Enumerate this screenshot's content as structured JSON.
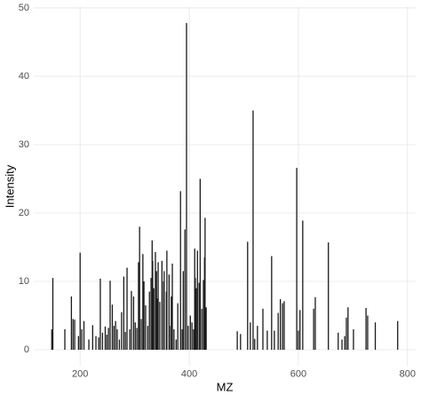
{
  "chart_data": {
    "type": "bar",
    "xlabel": "MZ",
    "ylabel": "Intensity",
    "color": "#1a1a1a",
    "grid": true,
    "xlim": [
      115,
      815
    ],
    "ylim": [
      -2.4,
      50.2
    ],
    "xticks": [
      200,
      400,
      600,
      800
    ],
    "yticks": [
      0,
      10,
      20,
      30,
      40,
      50
    ],
    "x": [
      148,
      150,
      172,
      184,
      187,
      190,
      197,
      200,
      203,
      207,
      216,
      223,
      229,
      234,
      237,
      241,
      246,
      249,
      252,
      255,
      259,
      262,
      265,
      268,
      272,
      276,
      280,
      283,
      286,
      291,
      294,
      298,
      301,
      304,
      307,
      309,
      312,
      315,
      317,
      320,
      324,
      327,
      330,
      332,
      333,
      335,
      338,
      340,
      341,
      343,
      346,
      350,
      353,
      354,
      358,
      359,
      363,
      364,
      367,
      369,
      372,
      376,
      379,
      384,
      387,
      389,
      392,
      395,
      398,
      402,
      405,
      408,
      410,
      411,
      413,
      415,
      418,
      420,
      423,
      426,
      428,
      429,
      431,
      488,
      494,
      507,
      512,
      517,
      520,
      525,
      535,
      543,
      551,
      556,
      563,
      567,
      571,
      574,
      597,
      600,
      603,
      608,
      628,
      631,
      655,
      673,
      680,
      685,
      688,
      691,
      701,
      724,
      727,
      741,
      782
    ],
    "values": [
      3,
      10.5,
      3,
      7.8,
      4.5,
      4.4,
      2,
      14.2,
      3,
      4.2,
      1.5,
      3.6,
      2,
      1.8,
      10.4,
      2.5,
      3.4,
      2.2,
      3.2,
      10.1,
      6.6,
      3.5,
      4.2,
      3,
      1.5,
      5.5,
      10.7,
      2.6,
      12,
      3,
      8.6,
      7.8,
      4,
      3.2,
      12.8,
      18,
      4.5,
      14,
      10,
      6.5,
      3.5,
      8.5,
      10.5,
      16,
      13,
      9,
      14.3,
      11.5,
      7.5,
      12.8,
      7,
      13,
      10,
      11.5,
      8.5,
      14.5,
      11,
      3.5,
      7.8,
      12.6,
      3,
      1.5,
      6.8,
      23.2,
      3,
      11.5,
      17.6,
      47.8,
      3.5,
      5,
      4,
      3,
      14.8,
      10.5,
      9,
      14.5,
      9.8,
      25,
      6,
      10.2,
      13.5,
      19.3,
      6.2,
      2.7,
      2.3,
      15.8,
      4,
      35,
      1.6,
      3.5,
      6,
      2.8,
      13.7,
      2.8,
      5.4,
      7.4,
      6.8,
      7.1,
      26.6,
      2.8,
      5.8,
      18.9,
      6,
      7.7,
      15.7,
      2.5,
      1.5,
      2,
      4.7,
      6.2,
      3,
      6.1,
      5,
      4,
      4.2
    ]
  }
}
